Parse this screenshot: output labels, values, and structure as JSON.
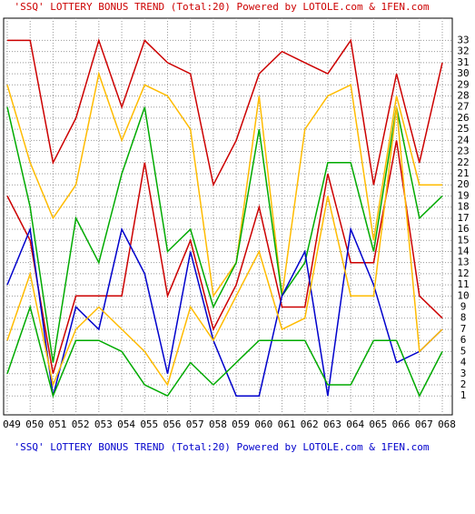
{
  "chart_data": {
    "type": "line",
    "title": "'SSQ' LOTTERY BONUS TREND (Total:20)  Powered by LOTOLE.com & 1FEN.com",
    "categories": [
      "049",
      "050",
      "051",
      "052",
      "053",
      "054",
      "055",
      "056",
      "057",
      "058",
      "059",
      "060",
      "061",
      "062",
      "063",
      "064",
      "065",
      "066",
      "067",
      "068"
    ],
    "series": [
      {
        "color": "#cc0000",
        "values": [
          33,
          33,
          22,
          26,
          33,
          27,
          33,
          31,
          30,
          20,
          24,
          30,
          32,
          31,
          30,
          33,
          20,
          30,
          22,
          31
        ]
      },
      {
        "color": "#ffbb00",
        "values": [
          29,
          22,
          17,
          20,
          30,
          24,
          29,
          28,
          25,
          10,
          13,
          28,
          10,
          25,
          28,
          29,
          15,
          28,
          20,
          20
        ]
      },
      {
        "color": "#00aa00",
        "values": [
          27,
          18,
          4,
          17,
          13,
          21,
          27,
          14,
          16,
          9,
          13,
          25,
          10,
          13,
          22,
          22,
          14,
          27,
          17,
          19
        ]
      },
      {
        "color": "#cc0000",
        "values": [
          19,
          15,
          3,
          10,
          10,
          10,
          22,
          10,
          15,
          7,
          11,
          18,
          9,
          9,
          21,
          13,
          13,
          24,
          10,
          8
        ]
      },
      {
        "color": "#0000cc",
        "values": [
          11,
          16,
          1,
          9,
          7,
          16,
          12,
          3,
          14,
          6,
          1,
          1,
          10,
          14,
          1,
          16,
          11,
          4,
          5,
          7
        ]
      },
      {
        "color": "#ffbb00",
        "values": [
          6,
          12,
          2,
          7,
          9,
          7,
          5,
          2,
          9,
          6,
          10,
          14,
          7,
          8,
          19,
          10,
          10,
          27,
          5,
          7
        ]
      },
      {
        "color": "#00aa00",
        "values": [
          3,
          9,
          1,
          6,
          6,
          5,
          2,
          1,
          4,
          2,
          4,
          6,
          6,
          6,
          2,
          2,
          6,
          6,
          1,
          5
        ]
      }
    ],
    "ylim": [
      -0.7,
      35
    ],
    "yticks": [
      1,
      2,
      3,
      4,
      5,
      6,
      7,
      8,
      9,
      10,
      11,
      12,
      13,
      14,
      15,
      16,
      17,
      18,
      19,
      20,
      21,
      22,
      23,
      24,
      25,
      26,
      27,
      28,
      29,
      30,
      31,
      32,
      33
    ],
    "grid": true
  }
}
